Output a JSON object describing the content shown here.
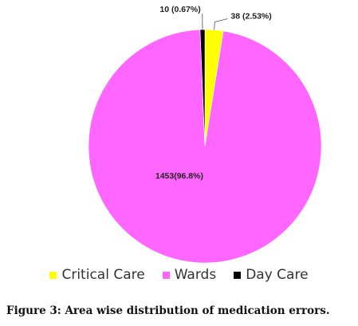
{
  "chart_data": {
    "type": "pie",
    "slices": [
      {
        "name": "Critical Care",
        "value": 38,
        "percent": 2.53,
        "label": "38 (2.53%)",
        "color": "#ffff00"
      },
      {
        "name": "Wards",
        "value": 1453,
        "percent": 96.8,
        "label": "1453(96.8%)",
        "color": "#ff66ff"
      },
      {
        "name": "Day Care",
        "value": 10,
        "percent": 0.67,
        "label": "10 (0.67%)",
        "color": "#000000"
      }
    ],
    "start": "12 o'clock",
    "direction": "clockwise",
    "legend": "bottom"
  },
  "caption": "Figure 3: Area wise distribution of medication errors."
}
